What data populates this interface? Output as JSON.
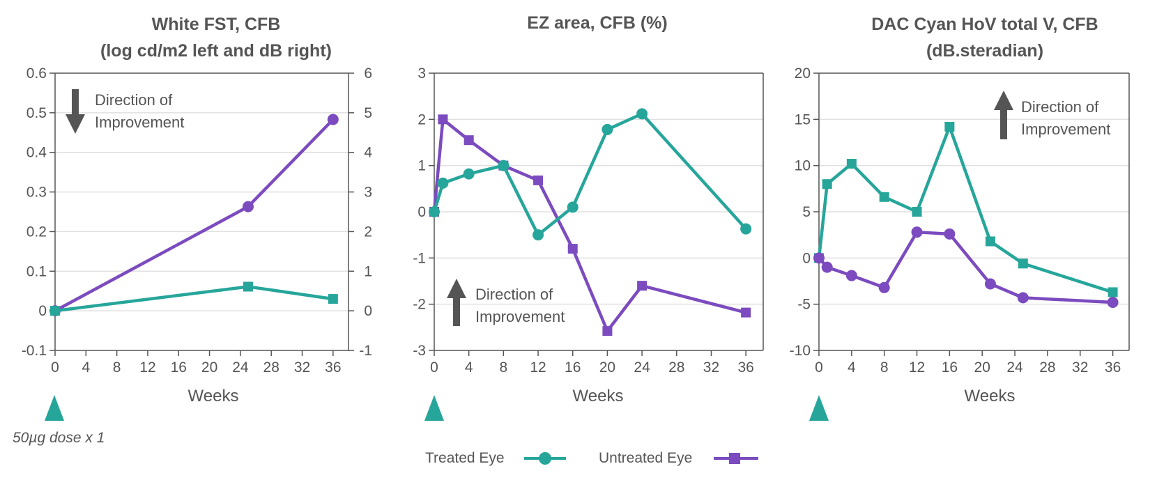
{
  "colors": {
    "treated": "#26a69a",
    "untreated": "#7b4bbf",
    "axis": "#555555",
    "grid": "#e0e0e0",
    "arrow": "#555555",
    "text": "#555555"
  },
  "legend": {
    "treated_label": "Treated Eye",
    "untreated_label": "Untreated Eye"
  },
  "dose_note": "50µg dose x 1",
  "dose_marker_icon": "triangle-up-icon",
  "chart_data": [
    {
      "type": "line",
      "title_lines": [
        "White FST, CFB",
        "(log cd/m2 left and dB right)"
      ],
      "xlabel": "Weeks",
      "x_ticks": [
        0,
        4,
        8,
        12,
        16,
        20,
        24,
        28,
        32,
        36
      ],
      "xlim": [
        0,
        38
      ],
      "ylim": [
        -0.1,
        0.6
      ],
      "y_ticks": [
        -0.1,
        0,
        0.1,
        0.2,
        0.3,
        0.4,
        0.5,
        0.6
      ],
      "y_tick_labels": [
        "-0.1",
        "0",
        "0.1",
        "0.2",
        "0.3",
        "0.4",
        "0.5",
        "0.6"
      ],
      "y2_ticks": [
        -1,
        0,
        1,
        2,
        3,
        4,
        5,
        6
      ],
      "y2_tick_labels": [
        "-1",
        "0",
        "1",
        "2",
        "3",
        "4",
        "5",
        "6"
      ],
      "grid": true,
      "annotation": {
        "lines": [
          "Direction of",
          "Improvement"
        ],
        "direction": "down",
        "placement": "top-left"
      },
      "series": [
        {
          "name": "Untreated Eye",
          "marker": "circle",
          "color_key": "untreated",
          "x": [
            0,
            25,
            36
          ],
          "y": [
            0,
            0.263,
            0.483
          ]
        },
        {
          "name": "Treated Eye",
          "marker": "square",
          "color_key": "treated",
          "x": [
            0,
            25,
            36
          ],
          "y": [
            0,
            0.061,
            0.03
          ]
        }
      ]
    },
    {
      "type": "line",
      "title_lines": [
        "EZ area, CFB (%)"
      ],
      "xlabel": "Weeks",
      "x_ticks": [
        0,
        4,
        8,
        12,
        16,
        20,
        24,
        28,
        32,
        36
      ],
      "xlim": [
        0,
        38
      ],
      "ylim": [
        -3,
        3
      ],
      "y_ticks": [
        -3,
        -2,
        -1,
        0,
        1,
        2,
        3
      ],
      "y_tick_labels": [
        "-3",
        "-2",
        "-1",
        "0",
        "1",
        "2",
        "3"
      ],
      "grid": true,
      "annotation": {
        "lines": [
          "Direction of",
          "Improvement"
        ],
        "direction": "up",
        "placement": "bottom-left"
      },
      "series": [
        {
          "name": "Untreated Eye",
          "marker": "square",
          "color_key": "untreated",
          "x": [
            0,
            1,
            4,
            8,
            12,
            16,
            20,
            24,
            36
          ],
          "y": [
            0,
            2.0,
            1.55,
            1.0,
            0.68,
            -0.8,
            -2.58,
            -1.6,
            -2.18
          ]
        },
        {
          "name": "Treated Eye",
          "marker": "circle",
          "color_key": "treated",
          "x": [
            0,
            1,
            4,
            8,
            12,
            16,
            20,
            24,
            36
          ],
          "y": [
            0,
            0.62,
            0.82,
            1.0,
            -0.5,
            0.1,
            1.78,
            2.12,
            -0.37
          ]
        }
      ]
    },
    {
      "type": "line",
      "title_lines": [
        "DAC Cyan HoV total V, CFB",
        "(dB.steradian)"
      ],
      "xlabel": "Weeks",
      "x_ticks": [
        0,
        4,
        8,
        12,
        16,
        20,
        24,
        28,
        32,
        36
      ],
      "xlim": [
        0,
        38
      ],
      "ylim": [
        -10,
        20
      ],
      "y_ticks": [
        -10,
        -5,
        0,
        5,
        10,
        15,
        20
      ],
      "y_tick_labels": [
        "-10",
        "-5",
        "0",
        "5",
        "10",
        "15",
        "20"
      ],
      "grid": true,
      "annotation": {
        "lines": [
          "Direction of",
          "Improvement"
        ],
        "direction": "up",
        "placement": "top-right"
      },
      "series": [
        {
          "name": "Treated Eye",
          "marker": "square",
          "color_key": "treated",
          "x": [
            0,
            1,
            4,
            8,
            12,
            16,
            21,
            25,
            36
          ],
          "y": [
            0,
            8.0,
            10.2,
            6.6,
            5.0,
            14.2,
            1.8,
            -0.6,
            -3.7
          ]
        },
        {
          "name": "Untreated Eye",
          "marker": "circle",
          "color_key": "untreated",
          "x": [
            0,
            1,
            4,
            8,
            12,
            16,
            21,
            25,
            36
          ],
          "y": [
            0,
            -1.0,
            -1.9,
            -3.2,
            2.8,
            2.6,
            -2.8,
            -4.3,
            -4.8
          ]
        }
      ]
    }
  ]
}
